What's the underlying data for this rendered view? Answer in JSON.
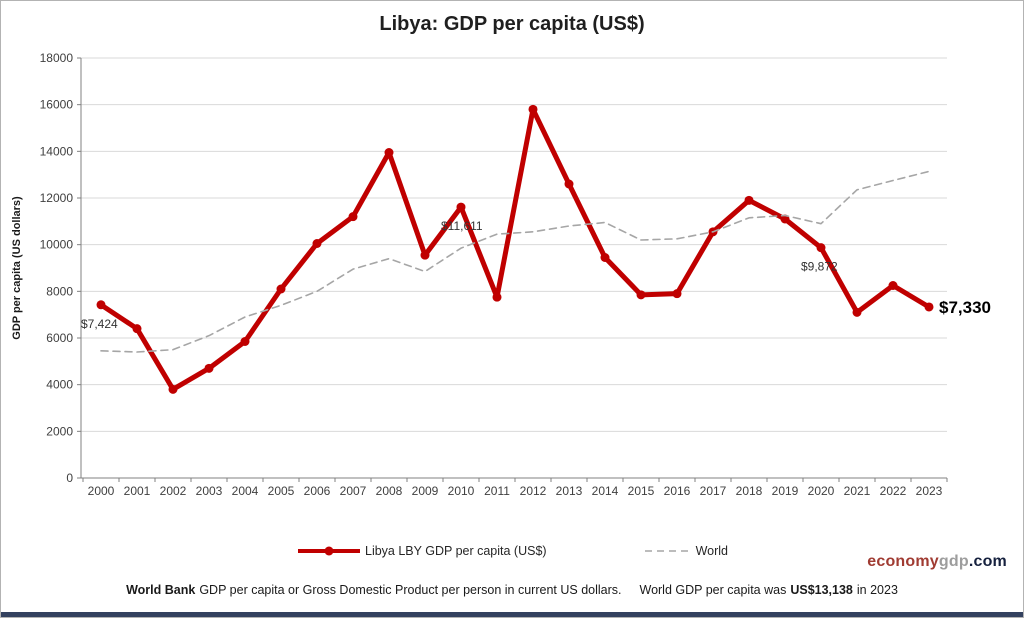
{
  "chart_data": {
    "type": "line",
    "title": "Libya: GDP per capita (US$)",
    "ylabel": "GDP per capita (US dollars)",
    "ylim": [
      0,
      18000
    ],
    "ytick_step": 2000,
    "grid": true,
    "legend_position": "bottom",
    "x": [
      2000,
      2001,
      2002,
      2003,
      2004,
      2005,
      2006,
      2007,
      2008,
      2009,
      2010,
      2011,
      2012,
      2013,
      2014,
      2015,
      2016,
      2017,
      2018,
      2019,
      2020,
      2021,
      2022,
      2023
    ],
    "series": [
      {
        "name": "Libya LBY GDP per capita (US$)",
        "color": "#c00000",
        "style": "solid",
        "marker": true,
        "values": [
          7424,
          6400,
          3800,
          4700,
          5850,
          8100,
          10050,
          11200,
          13950,
          9550,
          11611,
          7750,
          15800,
          12600,
          9450,
          7850,
          7900,
          10550,
          11900,
          11100,
          9872,
          7100,
          8250,
          7330
        ]
      },
      {
        "name": "World",
        "color": "#a6a6a6",
        "style": "dashed",
        "marker": false,
        "values": [
          5450,
          5400,
          5500,
          6100,
          6900,
          7400,
          8000,
          8950,
          9400,
          8850,
          9850,
          10450,
          10550,
          10800,
          10950,
          10200,
          10250,
          10550,
          11150,
          11250,
          10900,
          12350,
          12750,
          13138
        ]
      }
    ],
    "annotations": [
      {
        "x": 2000,
        "y": 7424,
        "label": "$7,424",
        "emphasis": false
      },
      {
        "x": 2010,
        "y": 11611,
        "label": "$11,611",
        "emphasis": false
      },
      {
        "x": 2020,
        "y": 9872,
        "label": "$9,872",
        "emphasis": false
      },
      {
        "x": 2023,
        "y": 7330,
        "label": "$7,330",
        "emphasis": true
      }
    ]
  },
  "watermark": {
    "economy": "economy",
    "gdp": "gdp",
    "com": ".com"
  },
  "footer": {
    "source_bold": "World Bank",
    "source_text": "GDP per capita or Gross Domestic Product per person in current US dollars.",
    "world_text": "World GDP per capita was",
    "world_value_bold": "US$13,138",
    "world_suffix": "in 2023"
  }
}
